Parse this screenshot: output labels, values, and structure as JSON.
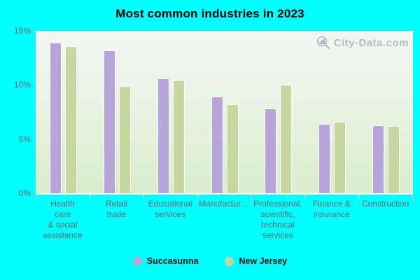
{
  "title": "Most common industries in 2023",
  "watermark": "City-Data.com",
  "legend": {
    "items": [
      {
        "label": "Succasunna",
        "color": "#b7a4d9"
      },
      {
        "label": "New Jersey",
        "color": "#c6d6a1"
      }
    ]
  },
  "chart_data": {
    "type": "bar",
    "title": "Most common industries in 2023",
    "xlabel": "",
    "ylabel": "",
    "ylim": [
      0,
      15
    ],
    "grid": "horizontal",
    "gridline_values": [
      5,
      10
    ],
    "legend_position": "bottom",
    "y_ticks": [
      {
        "value": 0,
        "label": "0%"
      },
      {
        "value": 5,
        "label": "5%"
      },
      {
        "value": 10,
        "label": "10%"
      },
      {
        "value": 15,
        "label": "15%"
      }
    ],
    "categories": [
      "Health care & social assistance",
      "Retail trade",
      "Educational services",
      "Manufactur…",
      "Professional, scientific, technical services",
      "Finance & insurance",
      "Construction"
    ],
    "category_label_lines": [
      [
        "Health",
        "care",
        "& social",
        "assistance"
      ],
      [
        "Retail",
        "trade"
      ],
      [
        "Educational",
        "services"
      ],
      [
        "Manufactur…"
      ],
      [
        "Professional,",
        "scientific,",
        "technical",
        "services"
      ],
      [
        "Finance &",
        "insurance"
      ],
      [
        "Construction"
      ]
    ],
    "series": [
      {
        "name": "Succasunna",
        "color": "#b7a4d9",
        "values": [
          13.9,
          13.2,
          10.6,
          8.9,
          7.8,
          6.4,
          6.3
        ]
      },
      {
        "name": "New Jersey",
        "color": "#c6d6a1",
        "values": [
          13.6,
          9.9,
          10.4,
          8.2,
          10.0,
          6.6,
          6.2
        ]
      }
    ]
  },
  "colors": {
    "background": "#00ffff",
    "plot_gradient_top": "#f1f6f3",
    "plot_gradient_bottom": "#d8eecc",
    "gridline": "#fcf0f8",
    "axis_text": "#5e6e70",
    "watermark_text": "#a7b4bb"
  }
}
